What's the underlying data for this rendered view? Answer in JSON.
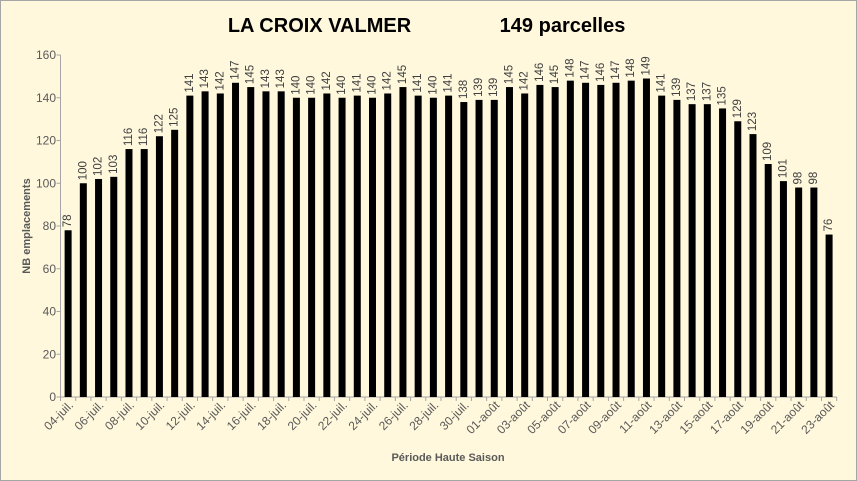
{
  "chart_data": {
    "type": "bar",
    "title": "LA CROIX VALMER",
    "subtitle": "149 parcelles",
    "xlabel": "Période Haute Saison",
    "ylabel": "NB emplacements",
    "ylim": [
      0,
      160
    ],
    "yticks": [
      0,
      20,
      40,
      60,
      80,
      100,
      120,
      140,
      160
    ],
    "grid": false,
    "bar_color": "#000000",
    "background": "#FFF8DC",
    "categories": [
      "04-juil.",
      "",
      "06-juil.",
      "",
      "08-juil.",
      "",
      "10-juil.",
      "",
      "12-juil.",
      "",
      "14-juil.",
      "",
      "16-juil.",
      "",
      "18-juil.",
      "",
      "20-juil.",
      "",
      "22-juil.",
      "",
      "24-juil.",
      "",
      "26-juil.",
      "",
      "28-juil.",
      "",
      "30-juil.",
      "",
      "01-août",
      "",
      "03-août",
      "",
      "05-août",
      "",
      "07-août",
      "",
      "09-août",
      "",
      "11-août",
      "",
      "13-août",
      "",
      "15-août",
      "",
      "17-août",
      "",
      "19-août",
      "",
      "21-août",
      "",
      "23-août"
    ],
    "values": [
      78,
      100,
      102,
      103,
      116,
      116,
      122,
      125,
      141,
      143,
      142,
      147,
      145,
      143,
      143,
      140,
      140,
      142,
      140,
      141,
      140,
      142,
      145,
      141,
      140,
      141,
      138,
      139,
      139,
      145,
      142,
      146,
      145,
      148,
      147,
      146,
      147,
      148,
      149,
      141,
      139,
      137,
      137,
      135,
      129,
      123,
      109,
      101,
      98,
      98,
      76
    ]
  }
}
